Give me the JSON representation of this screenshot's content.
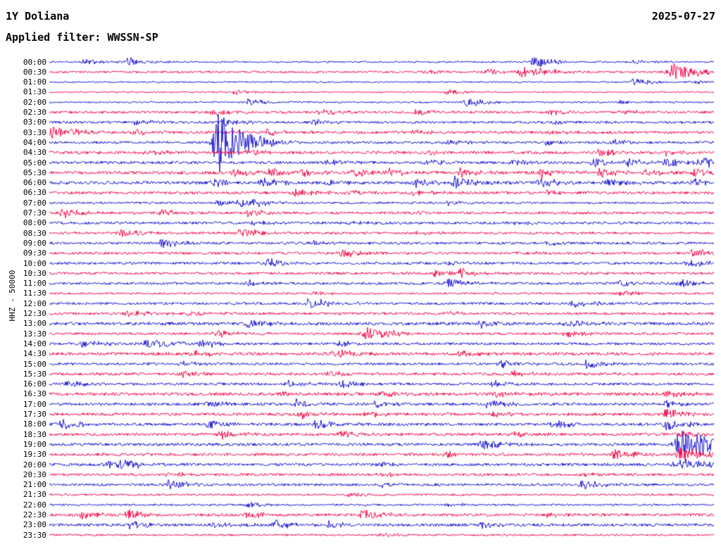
{
  "header": {
    "station": "1Y Doliana",
    "date": "2025-07-27",
    "filter_label": "Applied filter: WWSSN-SP"
  },
  "axis": {
    "scale_label": "HHZ - 50000"
  },
  "chart_data": {
    "type": "line",
    "subtype": "helicorder-day-plot",
    "title": "1Y Doliana",
    "date": "2025-07-27",
    "filter": "WWSSN-SP",
    "channel_scale": "HHZ - 50000",
    "minutes_per_row": 30,
    "x_range_minutes": [
      0,
      30
    ],
    "legend": "alternating trace colors per 30-minute row",
    "colors": {
      "blue": "#1c18d0",
      "red": "#f40e4e"
    },
    "rows": [
      {
        "time": "00:00",
        "color": "blue",
        "noise": 1.2,
        "events": [
          {
            "x": 0.05,
            "a": 4
          },
          {
            "x": 0.12,
            "a": 6
          },
          {
            "x": 0.73,
            "a": 9
          },
          {
            "x": 0.88,
            "a": 3
          }
        ]
      },
      {
        "time": "00:30",
        "color": "red",
        "noise": 1.5,
        "events": [
          {
            "x": 0.57,
            "a": 4
          },
          {
            "x": 0.66,
            "a": 5
          },
          {
            "x": 0.71,
            "a": 8
          },
          {
            "x": 0.74,
            "a": 6
          },
          {
            "x": 0.94,
            "a": 11,
            "w": 0.02
          }
        ]
      },
      {
        "time": "01:00",
        "color": "blue",
        "noise": 1.0,
        "events": [
          {
            "x": 0.88,
            "a": 6
          },
          {
            "x": 0.97,
            "a": 4
          }
        ]
      },
      {
        "time": "01:30",
        "color": "red",
        "noise": 1.0,
        "events": [
          {
            "x": 0.28,
            "a": 4
          },
          {
            "x": 0.6,
            "a": 4
          }
        ]
      },
      {
        "time": "02:00",
        "color": "blue",
        "noise": 1.2,
        "events": [
          {
            "x": 0.3,
            "a": 5
          },
          {
            "x": 0.63,
            "a": 7
          },
          {
            "x": 0.86,
            "a": 3
          }
        ]
      },
      {
        "time": "02:30",
        "color": "red",
        "noise": 1.8,
        "events": [
          {
            "x": 0.25,
            "a": 6
          },
          {
            "x": 0.41,
            "a": 4
          },
          {
            "x": 0.55,
            "a": 4
          },
          {
            "x": 0.75,
            "a": 4
          },
          {
            "x": 0.86,
            "a": 4
          }
        ]
      },
      {
        "time": "03:00",
        "color": "blue",
        "noise": 1.8,
        "events": [
          {
            "x": 0.13,
            "a": 4
          },
          {
            "x": 0.26,
            "a": 5
          },
          {
            "x": 0.4,
            "a": 4
          },
          {
            "x": 0.76,
            "a": 4
          }
        ]
      },
      {
        "time": "03:30",
        "color": "red",
        "noise": 2.0,
        "events": [
          {
            "x": 0.005,
            "a": 9,
            "w": 0.018
          },
          {
            "x": 0.13,
            "a": 5
          },
          {
            "x": 0.33,
            "a": 4
          },
          {
            "x": 0.55,
            "a": 3
          },
          {
            "x": 0.75,
            "a": 4
          }
        ]
      },
      {
        "time": "04:00",
        "color": "blue",
        "noise": 1.8,
        "events": [
          {
            "x": 0.255,
            "a": 42,
            "w": 0.018
          },
          {
            "x": 0.6,
            "a": 4
          },
          {
            "x": 0.75,
            "a": 4
          },
          {
            "x": 0.85,
            "a": 4
          }
        ]
      },
      {
        "time": "04:30",
        "color": "red",
        "noise": 2.0,
        "events": [
          {
            "x": 0.14,
            "a": 5
          },
          {
            "x": 0.3,
            "a": 4
          },
          {
            "x": 0.57,
            "a": 4
          },
          {
            "x": 0.83,
            "a": 5
          },
          {
            "x": 0.93,
            "a": 4
          }
        ]
      },
      {
        "time": "05:00",
        "color": "blue",
        "noise": 2.0,
        "events": [
          {
            "x": 0.42,
            "a": 4
          },
          {
            "x": 0.57,
            "a": 4
          },
          {
            "x": 0.7,
            "a": 4
          },
          {
            "x": 0.82,
            "a": 7
          },
          {
            "x": 0.87,
            "a": 5
          },
          {
            "x": 0.93,
            "a": 7
          },
          {
            "x": 0.98,
            "a": 8
          }
        ]
      },
      {
        "time": "05:30",
        "color": "red",
        "noise": 2.2,
        "events": [
          {
            "x": 0.28,
            "a": 6
          },
          {
            "x": 0.33,
            "a": 5
          },
          {
            "x": 0.38,
            "a": 6
          },
          {
            "x": 0.46,
            "a": 5
          },
          {
            "x": 0.51,
            "a": 6
          },
          {
            "x": 0.62,
            "a": 7
          },
          {
            "x": 0.74,
            "a": 7
          },
          {
            "x": 0.83,
            "a": 6
          },
          {
            "x": 0.9,
            "a": 5
          },
          {
            "x": 0.97,
            "a": 7
          }
        ]
      },
      {
        "time": "06:00",
        "color": "blue",
        "noise": 2.2,
        "events": [
          {
            "x": 0.25,
            "a": 5
          },
          {
            "x": 0.32,
            "a": 7
          },
          {
            "x": 0.42,
            "a": 4
          },
          {
            "x": 0.55,
            "a": 6
          },
          {
            "x": 0.61,
            "a": 8
          },
          {
            "x": 0.74,
            "a": 7
          },
          {
            "x": 0.84,
            "a": 6
          },
          {
            "x": 0.97,
            "a": 5
          }
        ]
      },
      {
        "time": "06:30",
        "color": "red",
        "noise": 2.0,
        "events": [
          {
            "x": 0.37,
            "a": 6
          },
          {
            "x": 0.45,
            "a": 4
          },
          {
            "x": 0.55,
            "a": 4
          },
          {
            "x": 0.75,
            "a": 3
          }
        ]
      },
      {
        "time": "07:00",
        "color": "blue",
        "noise": 1.5,
        "events": [
          {
            "x": 0.255,
            "a": 5
          },
          {
            "x": 0.29,
            "a": 7
          },
          {
            "x": 0.31,
            "a": 5
          },
          {
            "x": 0.6,
            "a": 3
          }
        ]
      },
      {
        "time": "07:30",
        "color": "red",
        "noise": 1.8,
        "events": [
          {
            "x": 0.02,
            "a": 7
          },
          {
            "x": 0.17,
            "a": 6
          },
          {
            "x": 0.3,
            "a": 5
          },
          {
            "x": 0.55,
            "a": 3
          }
        ]
      },
      {
        "time": "08:00",
        "color": "blue",
        "noise": 1.8,
        "events": [
          {
            "x": 0.31,
            "a": 4
          },
          {
            "x": 0.45,
            "a": 3
          },
          {
            "x": 0.7,
            "a": 3
          }
        ]
      },
      {
        "time": "08:30",
        "color": "red",
        "noise": 1.8,
        "events": [
          {
            "x": 0.11,
            "a": 6
          },
          {
            "x": 0.29,
            "a": 7
          },
          {
            "x": 0.55,
            "a": 3
          }
        ]
      },
      {
        "time": "09:00",
        "color": "blue",
        "noise": 1.8,
        "events": [
          {
            "x": 0.17,
            "a": 7
          },
          {
            "x": 0.4,
            "a": 3
          },
          {
            "x": 0.75,
            "a": 3
          }
        ]
      },
      {
        "time": "09:30",
        "color": "red",
        "noise": 1.8,
        "events": [
          {
            "x": 0.44,
            "a": 7
          },
          {
            "x": 0.7,
            "a": 3
          },
          {
            "x": 0.97,
            "a": 7
          }
        ]
      },
      {
        "time": "10:00",
        "color": "blue",
        "noise": 1.8,
        "events": [
          {
            "x": 0.33,
            "a": 7
          },
          {
            "x": 0.6,
            "a": 3
          },
          {
            "x": 0.96,
            "a": 6
          }
        ]
      },
      {
        "time": "10:30",
        "color": "red",
        "noise": 1.8,
        "events": [
          {
            "x": 0.58,
            "a": 5
          },
          {
            "x": 0.62,
            "a": 7
          },
          {
            "x": 0.8,
            "a": 3
          }
        ]
      },
      {
        "time": "11:00",
        "color": "blue",
        "noise": 1.8,
        "events": [
          {
            "x": 0.3,
            "a": 5
          },
          {
            "x": 0.6,
            "a": 7
          },
          {
            "x": 0.86,
            "a": 4
          },
          {
            "x": 0.95,
            "a": 6
          }
        ]
      },
      {
        "time": "11:30",
        "color": "red",
        "noise": 1.4,
        "events": [
          {
            "x": 0.4,
            "a": 3
          },
          {
            "x": 0.86,
            "a": 4
          }
        ]
      },
      {
        "time": "12:00",
        "color": "blue",
        "noise": 1.8,
        "events": [
          {
            "x": 0.39,
            "a": 7
          },
          {
            "x": 0.41,
            "a": 5
          },
          {
            "x": 0.79,
            "a": 6
          }
        ]
      },
      {
        "time": "12:30",
        "color": "red",
        "noise": 1.8,
        "events": [
          {
            "x": 0.12,
            "a": 5
          },
          {
            "x": 0.21,
            "a": 4
          },
          {
            "x": 0.6,
            "a": 3
          }
        ]
      },
      {
        "time": "13:00",
        "color": "blue",
        "noise": 2.2,
        "events": [
          {
            "x": 0.3,
            "a": 6
          },
          {
            "x": 0.65,
            "a": 5
          },
          {
            "x": 0.78,
            "a": 5
          }
        ]
      },
      {
        "time": "13:30",
        "color": "red",
        "noise": 1.8,
        "events": [
          {
            "x": 0.25,
            "a": 6
          },
          {
            "x": 0.48,
            "a": 10,
            "w": 0.016
          },
          {
            "x": 0.78,
            "a": 5
          }
        ]
      },
      {
        "time": "14:00",
        "color": "blue",
        "noise": 1.8,
        "events": [
          {
            "x": 0.05,
            "a": 7
          },
          {
            "x": 0.15,
            "a": 9,
            "w": 0.015
          },
          {
            "x": 0.23,
            "a": 6
          },
          {
            "x": 0.44,
            "a": 4
          }
        ]
      },
      {
        "time": "14:30",
        "color": "red",
        "noise": 2.2,
        "events": [
          {
            "x": 0.22,
            "a": 5
          },
          {
            "x": 0.43,
            "a": 6
          },
          {
            "x": 0.62,
            "a": 4
          }
        ]
      },
      {
        "time": "15:00",
        "color": "blue",
        "noise": 1.8,
        "events": [
          {
            "x": 0.2,
            "a": 4
          },
          {
            "x": 0.68,
            "a": 6
          },
          {
            "x": 0.81,
            "a": 7
          }
        ]
      },
      {
        "time": "15:30",
        "color": "red",
        "noise": 2.0,
        "events": [
          {
            "x": 0.2,
            "a": 5
          },
          {
            "x": 0.42,
            "a": 5
          },
          {
            "x": 0.7,
            "a": 4
          }
        ]
      },
      {
        "time": "16:00",
        "color": "blue",
        "noise": 1.8,
        "events": [
          {
            "x": 0.03,
            "a": 5
          },
          {
            "x": 0.36,
            "a": 6
          },
          {
            "x": 0.44,
            "a": 6
          },
          {
            "x": 0.67,
            "a": 5
          }
        ]
      },
      {
        "time": "16:30",
        "color": "red",
        "noise": 2.2,
        "events": [
          {
            "x": 0.35,
            "a": 4
          },
          {
            "x": 0.5,
            "a": 4
          },
          {
            "x": 0.67,
            "a": 5
          },
          {
            "x": 0.93,
            "a": 5
          }
        ]
      },
      {
        "time": "17:00",
        "color": "blue",
        "noise": 2.0,
        "events": [
          {
            "x": 0.24,
            "a": 5
          },
          {
            "x": 0.37,
            "a": 7
          },
          {
            "x": 0.49,
            "a": 5
          },
          {
            "x": 0.66,
            "a": 6
          },
          {
            "x": 0.93,
            "a": 5
          }
        ]
      },
      {
        "time": "17:30",
        "color": "red",
        "noise": 2.0,
        "events": [
          {
            "x": 0.38,
            "a": 6
          },
          {
            "x": 0.48,
            "a": 5
          },
          {
            "x": 0.67,
            "a": 4
          },
          {
            "x": 0.93,
            "a": 8
          }
        ]
      },
      {
        "time": "18:00",
        "color": "blue",
        "noise": 2.0,
        "events": [
          {
            "x": 0.02,
            "a": 7
          },
          {
            "x": 0.24,
            "a": 6
          },
          {
            "x": 0.4,
            "a": 7
          },
          {
            "x": 0.76,
            "a": 6
          },
          {
            "x": 0.93,
            "a": 9
          }
        ]
      },
      {
        "time": "18:30",
        "color": "red",
        "noise": 2.0,
        "events": [
          {
            "x": 0.26,
            "a": 6
          },
          {
            "x": 0.44,
            "a": 4
          },
          {
            "x": 0.7,
            "a": 4
          },
          {
            "x": 0.95,
            "a": 5
          }
        ]
      },
      {
        "time": "19:00",
        "color": "blue",
        "noise": 2.0,
        "events": [
          {
            "x": 0.65,
            "a": 8
          },
          {
            "x": 0.952,
            "a": 26,
            "w": 0.02
          }
        ]
      },
      {
        "time": "19:30",
        "color": "red",
        "noise": 2.0,
        "events": [
          {
            "x": 0.6,
            "a": 4
          },
          {
            "x": 0.85,
            "a": 8
          },
          {
            "x": 0.95,
            "a": 10,
            "w": 0.02
          }
        ]
      },
      {
        "time": "20:00",
        "color": "blue",
        "noise": 2.0,
        "events": [
          {
            "x": 0.09,
            "a": 6
          },
          {
            "x": 0.11,
            "a": 8
          },
          {
            "x": 0.5,
            "a": 3
          },
          {
            "x": 0.95,
            "a": 8,
            "w": 0.02
          }
        ]
      },
      {
        "time": "20:30",
        "color": "red",
        "noise": 1.8,
        "events": [
          {
            "x": 0.18,
            "a": 4
          },
          {
            "x": 0.5,
            "a": 3
          },
          {
            "x": 0.8,
            "a": 3
          }
        ]
      },
      {
        "time": "21:00",
        "color": "blue",
        "noise": 1.8,
        "events": [
          {
            "x": 0.18,
            "a": 8
          },
          {
            "x": 0.5,
            "a": 3
          },
          {
            "x": 0.8,
            "a": 7
          }
        ]
      },
      {
        "time": "21:30",
        "color": "red",
        "noise": 1.4,
        "events": [
          {
            "x": 0.45,
            "a": 3
          }
        ]
      },
      {
        "time": "22:00",
        "color": "blue",
        "noise": 1.4,
        "events": [
          {
            "x": 0.3,
            "a": 4
          },
          {
            "x": 0.6,
            "a": 3
          }
        ]
      },
      {
        "time": "22:30",
        "color": "red",
        "noise": 2.0,
        "events": [
          {
            "x": 0.05,
            "a": 6
          },
          {
            "x": 0.12,
            "a": 8
          },
          {
            "x": 0.3,
            "a": 5
          },
          {
            "x": 0.47,
            "a": 8
          },
          {
            "x": 0.75,
            "a": 3
          }
        ]
      },
      {
        "time": "23:00",
        "color": "blue",
        "noise": 2.0,
        "events": [
          {
            "x": 0.12,
            "a": 6
          },
          {
            "x": 0.25,
            "a": 5
          },
          {
            "x": 0.34,
            "a": 7
          },
          {
            "x": 0.42,
            "a": 5
          },
          {
            "x": 0.65,
            "a": 4
          }
        ]
      },
      {
        "time": "23:30",
        "color": "red",
        "noise": 1.3,
        "events": [
          {
            "x": 0.5,
            "a": 3
          }
        ]
      }
    ]
  }
}
